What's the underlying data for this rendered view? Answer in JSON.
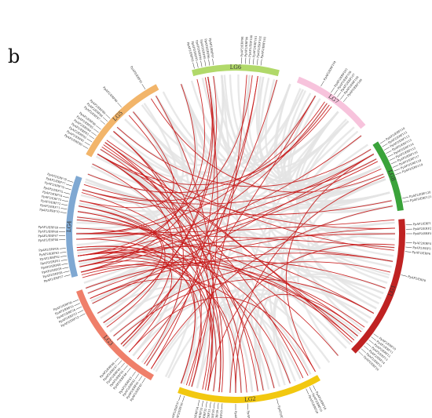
{
  "panel_letter": "b",
  "colors": {
    "background_links": "#e4e4e4",
    "highlight_links": "#c81e1e",
    "tick_lines": "#333333"
  },
  "chromosomes": [
    {
      "name": "LG1",
      "color": "#bf2222",
      "start_deg": 85,
      "end_deg": 135
    },
    {
      "name": "LG2",
      "color": "#f2c80f",
      "start_deg": 150,
      "end_deg": 200
    },
    {
      "name": "LG3",
      "color": "#ef7f6a",
      "start_deg": 210,
      "end_deg": 250
    },
    {
      "name": "LG4",
      "color": "#7fa8d2",
      "start_deg": 255,
      "end_deg": 290
    },
    {
      "name": "LG5",
      "color": "#f2b56a",
      "start_deg": 298,
      "end_deg": 332
    },
    {
      "name": "LG6",
      "color": "#b1d96a",
      "start_deg": 345,
      "end_deg": 15
    },
    {
      "name": "LG7",
      "color": "#f7c3dc",
      "start_deg": 22,
      "end_deg": 50
    },
    {
      "name": "LG8",
      "color": "#3aa33a",
      "start_deg": 57,
      "end_deg": 82
    }
  ],
  "genes": [
    {
      "label": "PpAP2/ERF1",
      "deg": 87
    },
    {
      "label": "PpAP2/ERF2",
      "deg": 88.5
    },
    {
      "label": "PpAP2/ERF3",
      "deg": 90
    },
    {
      "label": "PpAP2/ERF4",
      "deg": 93
    },
    {
      "label": "PpAP2/ERF5",
      "deg": 94.5
    },
    {
      "label": "PpAP2/ERF6",
      "deg": 96
    },
    {
      "label": "PpAP2/ERF8",
      "deg": 104
    },
    {
      "label": "PpAP2/ERF10",
      "deg": 126
    },
    {
      "label": "PpAP2/ERF11",
      "deg": 127.3
    },
    {
      "label": "PpAP2/ERF12",
      "deg": 128.6
    },
    {
      "label": "PpAP2/ERF13",
      "deg": 129.9
    },
    {
      "label": "PpAP2/ERF14",
      "deg": 131.2
    },
    {
      "label": "PpAP2/ERF15",
      "deg": 132.5
    },
    {
      "label": "PpAP2/ERF16",
      "deg": 133.8
    },
    {
      "label": "PpAP2/ERF18",
      "deg": 153
    },
    {
      "label": "PpAP2/ERF19",
      "deg": 154.3
    },
    {
      "label": "PpAP2/ERF20",
      "deg": 155.6
    },
    {
      "label": "PpAP2/ERF24",
      "deg": 166
    },
    {
      "label": "PpAP2/ERF25",
      "deg": 176
    },
    {
      "label": "PpAP2/ERF26",
      "deg": 180
    },
    {
      "label": "PpAP2/ERF28",
      "deg": 184.5
    },
    {
      "label": "PpAP2/ERF29",
      "deg": 185.8
    },
    {
      "label": "PpAP2/ERF30",
      "deg": 187.1
    },
    {
      "label": "PpAP2/ERF31",
      "deg": 188.4
    },
    {
      "label": "PpAP2/ERF32",
      "deg": 189.7
    },
    {
      "label": "PpAP2/ERF33",
      "deg": 191
    },
    {
      "label": "PpAP2/ERF34",
      "deg": 192.3
    },
    {
      "label": "PpAP2/ERF36",
      "deg": 197.5
    },
    {
      "label": "PpAP2/ERF37",
      "deg": 198.8
    },
    {
      "label": "PpAP2/ERF40",
      "deg": 212
    },
    {
      "label": "PpAP2/ERF41",
      "deg": 213.3
    },
    {
      "label": "PpAP2/ERF42",
      "deg": 214.6
    },
    {
      "label": "PpAP2/ERF43",
      "deg": 215.9
    },
    {
      "label": "PpAP2/ERF44",
      "deg": 218
    },
    {
      "label": "PpAP2/ERF45",
      "deg": 219.3
    },
    {
      "label": "PpAP2/ERF46",
      "deg": 220.6
    },
    {
      "label": "PpAP2/ERF47",
      "deg": 221.9
    },
    {
      "label": "PpAP2/ERF48",
      "deg": 223.2
    },
    {
      "label": "PpAP2/ERF52",
      "deg": 242
    },
    {
      "label": "PpAP2/ERF53",
      "deg": 243.3
    },
    {
      "label": "PpAP2/ERF54",
      "deg": 244.6
    },
    {
      "label": "PpAP2/ERF55",
      "deg": 245.9
    },
    {
      "label": "PpAP2/ERF56",
      "deg": 247.2
    },
    {
      "label": "PpAP2/ERF57",
      "deg": 256
    },
    {
      "label": "PpAP2/ERF58",
      "deg": 257.3
    },
    {
      "label": "PpAP2/ERF59",
      "deg": 258.6
    },
    {
      "label": "PpAP2/ERF60",
      "deg": 259.9
    },
    {
      "label": "PpAP2/ERF61",
      "deg": 261.2
    },
    {
      "label": "PpAP2/ERF62",
      "deg": 262.5
    },
    {
      "label": "PpAP2/ERF63",
      "deg": 263.8
    },
    {
      "label": "PpAP2/ERF64",
      "deg": 265.1
    },
    {
      "label": "PpAP2/ERF66",
      "deg": 268
    },
    {
      "label": "PpAP2/ERF67",
      "deg": 269.3
    },
    {
      "label": "PpAP2/ERF68",
      "deg": 270.6
    },
    {
      "label": "PpAP2/ERF69",
      "deg": 271.9
    },
    {
      "label": "PpAP2/ERF70",
      "deg": 277
    },
    {
      "label": "PpAP2/ERF71",
      "deg": 278.3
    },
    {
      "label": "PpAP2/ERF72",
      "deg": 279.6
    },
    {
      "label": "PpAP2/ERF73",
      "deg": 280.9
    },
    {
      "label": "PpAP2/ERF74",
      "deg": 282.2
    },
    {
      "label": "PpAP2/ERF75",
      "deg": 283.5
    },
    {
      "label": "PpAP2/ERF76",
      "deg": 285
    },
    {
      "label": "PpAP2/ERF77",
      "deg": 286.3
    },
    {
      "label": "PpAP2/ERF78",
      "deg": 287.6
    },
    {
      "label": "PpAP2/ERF80",
      "deg": 300
    },
    {
      "label": "PpAP2/ERF81",
      "deg": 301.3
    },
    {
      "label": "PpAP2/ERF82",
      "deg": 302.6
    },
    {
      "label": "PpAP2/ERF83",
      "deg": 303.9
    },
    {
      "label": "PpAP2/ERF84",
      "deg": 305.2
    },
    {
      "label": "PpAP2/ERF85",
      "deg": 306.5
    },
    {
      "label": "PpAP2/ERF86",
      "deg": 307.8
    },
    {
      "label": "PpAP2/ERF87",
      "deg": 310
    },
    {
      "label": "PpAP2/ERF88",
      "deg": 311.3
    },
    {
      "label": "PpAP2/ERF89",
      "deg": 312.6
    },
    {
      "label": "PpAP2/ERF90",
      "deg": 318
    },
    {
      "label": "PpAP2/ERF91",
      "deg": 328
    },
    {
      "label": "PpAP2/ERF92",
      "deg": 346
    },
    {
      "label": "PpAP2/ERF93",
      "deg": 347.3
    },
    {
      "label": "PpAP2/ERF94",
      "deg": 348.6
    },
    {
      "label": "PpAP2/ERF95",
      "deg": 349.9
    },
    {
      "label": "PpAP2/ERF96",
      "deg": 351.2
    },
    {
      "label": "PpAP2/ERF97",
      "deg": 352.5
    },
    {
      "label": "PpAP2/ERF98",
      "deg": 2
    },
    {
      "label": "PpAP2/ERF99",
      "deg": 3.3
    },
    {
      "label": "PpAP2/ERF100",
      "deg": 4.6
    },
    {
      "label": "PpAP2/ERF101",
      "deg": 5.9
    },
    {
      "label": "PpAP2/ERF102",
      "deg": 7.2
    },
    {
      "label": "PpAP2/ERF103",
      "deg": 8.5
    },
    {
      "label": "PpAP2/ERF104",
      "deg": 30
    },
    {
      "label": "PpAP2/ERF105",
      "deg": 34
    },
    {
      "label": "PpAP2/ERF106",
      "deg": 35.3
    },
    {
      "label": "PpAP2/ERF107",
      "deg": 36.6
    },
    {
      "label": "PpAP2/ERF108",
      "deg": 37.9
    },
    {
      "label": "PpAP2/ERF109",
      "deg": 39.2
    },
    {
      "label": "PpAP2/ERF110",
      "deg": 58
    },
    {
      "label": "PpAP2/ERF111",
      "deg": 59.3
    },
    {
      "label": "PpAP2/ERF112",
      "deg": 60.6
    },
    {
      "label": "PpAP2/ERF113",
      "deg": 61.9
    },
    {
      "label": "PpAP2/ERF114",
      "deg": 63.2
    },
    {
      "label": "PpAP2/ERF115",
      "deg": 64.5
    },
    {
      "label": "PpAP2/ERF116",
      "deg": 65.8
    },
    {
      "label": "PpAP2/ERF117",
      "deg": 67.1
    },
    {
      "label": "PpAP2/ERF118",
      "deg": 68.4
    },
    {
      "label": "PpAP2/ERF119",
      "deg": 69.7
    },
    {
      "label": "PpAP2/ERF120",
      "deg": 78
    },
    {
      "label": "PpAP2/ERF121",
      "deg": 79.3
    }
  ],
  "highlight_links": [
    [
      88,
      300
    ],
    [
      90,
      260
    ],
    [
      94,
      190
    ],
    [
      104,
      230
    ],
    [
      126,
      255
    ],
    [
      128,
      180
    ],
    [
      130,
      262
    ],
    [
      133,
      305
    ],
    [
      153,
      265
    ],
    [
      155,
      302
    ],
    [
      166,
      278
    ],
    [
      176,
      300
    ],
    [
      180,
      260
    ],
    [
      185,
      310
    ],
    [
      188,
      268
    ],
    [
      191,
      330
    ],
    [
      197,
      305
    ],
    [
      212,
      350
    ],
    [
      214,
      8
    ],
    [
      218,
      30
    ],
    [
      222,
      265
    ],
    [
      244,
      60
    ],
    [
      246,
      100
    ],
    [
      256,
      350
    ],
    [
      258,
      35
    ],
    [
      260,
      132
    ],
    [
      262,
      200
    ],
    [
      264,
      190
    ],
    [
      268,
      60
    ],
    [
      270,
      95
    ],
    [
      272,
      128
    ],
    [
      278,
      186
    ],
    [
      280,
      240
    ],
    [
      282,
      320
    ],
    [
      286,
      36
    ],
    [
      300,
      186
    ],
    [
      303,
      132
    ],
    [
      306,
      96
    ],
    [
      310,
      215
    ],
    [
      312,
      58
    ],
    [
      318,
      192
    ],
    [
      328,
      68
    ],
    [
      346,
      262
    ],
    [
      349,
      196
    ],
    [
      352,
      236
    ],
    [
      4,
      198
    ],
    [
      6,
      270
    ],
    [
      8,
      225
    ],
    [
      30,
      270
    ],
    [
      34,
      292
    ],
    [
      37,
      300
    ],
    [
      60,
      150
    ],
    [
      63,
      258
    ],
    [
      66,
      256
    ],
    [
      69,
      182
    ],
    [
      78,
      286
    ],
    [
      80,
      212
    ],
    [
      85,
      270
    ],
    [
      100,
      262
    ],
    [
      110,
      250
    ],
    [
      120,
      228
    ],
    [
      140,
      276
    ],
    [
      150,
      222
    ],
    [
      160,
      246
    ],
    [
      170,
      285
    ],
    [
      172,
      304
    ],
    [
      178,
      256
    ],
    [
      196,
      258
    ],
    [
      200,
      280
    ],
    [
      226,
      300
    ],
    [
      234,
      282
    ],
    [
      236,
      350
    ],
    [
      248,
      88
    ],
    [
      254,
      130
    ],
    [
      275,
      120
    ],
    [
      288,
      62
    ],
    [
      296,
      190
    ],
    [
      340,
      260
    ],
    [
      15,
      226
    ],
    [
      52,
      262
    ]
  ],
  "background_links": [
    [
      86,
      140
    ],
    [
      90,
      170
    ],
    [
      92,
      330
    ],
    [
      95,
      20
    ],
    [
      98,
      60
    ],
    [
      100,
      205
    ],
    [
      102,
      290
    ],
    [
      105,
      340
    ],
    [
      108,
      40
    ],
    [
      110,
      180
    ],
    [
      112,
      250
    ],
    [
      114,
      300
    ],
    [
      116,
      10
    ],
    [
      118,
      70
    ],
    [
      120,
      160
    ],
    [
      122,
      235
    ],
    [
      124,
      320
    ],
    [
      127,
      45
    ],
    [
      129,
      200
    ],
    [
      131,
      275
    ],
    [
      134,
      350
    ],
    [
      152,
      50
    ],
    [
      156,
      210
    ],
    [
      158,
      330
    ],
    [
      160,
      30
    ],
    [
      162,
      90
    ],
    [
      164,
      240
    ],
    [
      168,
      310
    ],
    [
      170,
      355
    ],
    [
      172,
      65
    ],
    [
      174,
      225
    ],
    [
      178,
      295
    ],
    [
      182,
      40
    ],
    [
      186,
      245
    ],
    [
      190,
      320
    ],
    [
      194,
      70
    ],
    [
      196,
      15
    ],
    [
      199,
      270
    ],
    [
      211,
      80
    ],
    [
      216,
      40
    ],
    [
      220,
      330
    ],
    [
      224,
      5
    ],
    [
      228,
      70
    ],
    [
      232,
      300
    ],
    [
      236,
      25
    ],
    [
      240,
      320
    ],
    [
      245,
      65
    ],
    [
      248,
      355
    ],
    [
      252,
      45
    ],
    [
      256,
      300
    ],
    [
      259,
      75
    ],
    [
      263,
      5
    ],
    [
      266,
      325
    ],
    [
      270,
      45
    ],
    [
      274,
      10
    ],
    [
      276,
      355
    ],
    [
      281,
      60
    ],
    [
      284,
      20
    ],
    [
      289,
      75
    ],
    [
      292,
      40
    ],
    [
      296,
      75
    ],
    [
      299,
      30
    ],
    [
      302,
      65
    ],
    [
      305,
      340
    ],
    [
      308,
      75
    ],
    [
      312,
      25
    ],
    [
      316,
      60
    ],
    [
      320,
      350
    ],
    [
      324,
      40
    ],
    [
      330,
      70
    ],
    [
      333,
      20
    ],
    [
      344,
      60
    ],
    [
      348,
      40
    ],
    [
      352,
      70
    ],
    [
      356,
      30
    ],
    [
      358,
      60
    ],
    [
      1,
      75
    ],
    [
      5,
      45
    ],
    [
      9,
      65
    ],
    [
      12,
      35
    ],
    [
      14,
      60
    ],
    [
      24,
      70
    ],
    [
      26,
      80
    ],
    [
      28,
      62
    ],
    [
      32,
      75
    ],
    [
      40,
      68
    ],
    [
      44,
      78
    ],
    [
      48,
      58
    ],
    [
      52,
      70
    ],
    [
      56,
      80
    ],
    [
      60,
      20
    ],
    [
      65,
      355
    ],
    [
      70,
      40
    ],
    [
      75,
      340
    ],
    [
      80,
      30
    ],
    [
      86,
      250
    ],
    [
      90,
      310
    ],
    [
      95,
      230
    ],
    [
      100,
      280
    ],
    [
      106,
      320
    ],
    [
      112,
      200
    ],
    [
      118,
      290
    ],
    [
      124,
      350
    ],
    [
      130,
      220
    ],
    [
      136,
      300
    ],
    [
      144,
      260
    ],
    [
      148,
      340
    ],
    [
      152,
      280
    ],
    [
      160,
      300
    ],
    [
      166,
      340
    ],
    [
      174,
      270
    ],
    [
      182,
      320
    ],
    [
      188,
      250
    ],
    [
      194,
      330
    ],
    [
      200,
      300
    ],
    [
      206,
      350
    ],
    [
      214,
      290
    ],
    [
      220,
      260
    ],
    [
      226,
      320
    ],
    [
      232,
      270
    ],
    [
      238,
      300
    ],
    [
      244,
      340
    ],
    [
      250,
      270
    ],
    [
      258,
      310
    ],
    [
      264,
      290
    ],
    [
      272,
      320
    ],
    [
      278,
      300
    ],
    [
      286,
      330
    ]
  ]
}
